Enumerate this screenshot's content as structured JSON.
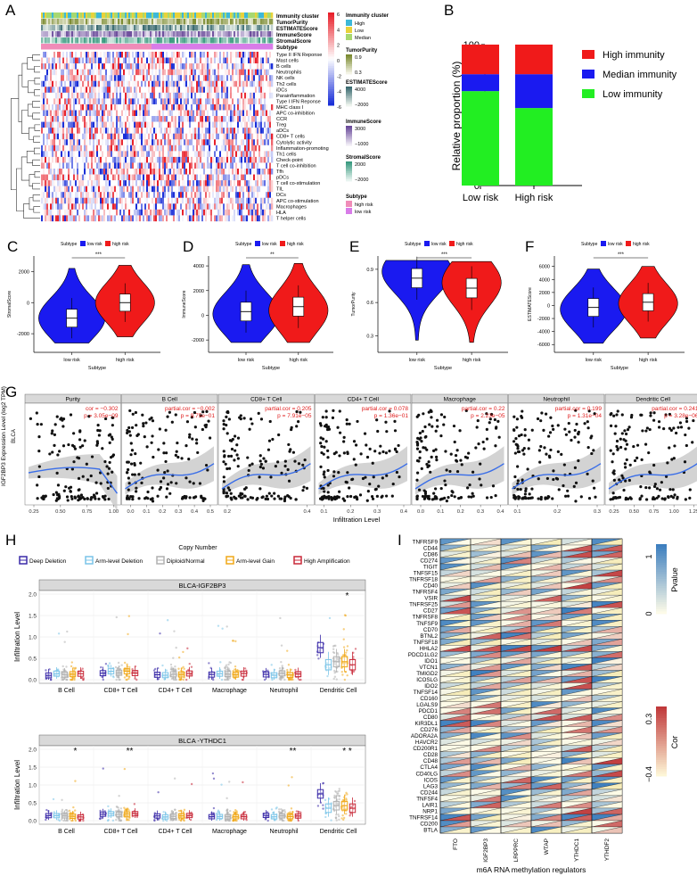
{
  "panels": {
    "A": "A",
    "B": "B",
    "C": "C",
    "D": "D",
    "E": "E",
    "F": "F",
    "G": "G",
    "H": "H",
    "I": "I"
  },
  "heatmap": {
    "annotation_rows": [
      "Immunity cluster",
      "TumorPurity",
      "ESTIMATEScore",
      "ImmuneScore",
      "StromalScore",
      "Subtype"
    ],
    "gene_rows": [
      "Type II IFN Reponse",
      "Mast cells",
      "B cells",
      "Neutrophils",
      "NK cells",
      "Th2 cells",
      "iDCs",
      "Parainflammation",
      "Type I IFN Reponse",
      "MHC class I",
      "APC co-inhibition",
      "CCR",
      "Treg",
      "aDCs",
      "CD8+ T cells",
      "Cytolytic activity",
      "Inflammation-promoting",
      "Th1 cells",
      "Check-point",
      "T cell co-inhibition",
      "Tfh",
      "pDCs",
      "T cell co-stimulation",
      "TIL",
      "DCs",
      "APC co-stimulation",
      "Macrophages",
      "HLA",
      "T helper cells"
    ],
    "scale_ticks": [
      "6",
      "4",
      "2",
      "0",
      "-2",
      "-4",
      "-6"
    ],
    "legend": {
      "immunity_title": "Immunity cluster",
      "immunity_items": [
        "High",
        "Low",
        "Median"
      ],
      "tp_title": "TumorPurity",
      "tp_ticks": [
        "0.9",
        "0.3"
      ],
      "est_title": "ESTIMATEScore",
      "est_ticks": [
        "4000",
        "−2000"
      ],
      "imm_title": "ImmuneScore",
      "imm_ticks": [
        "3000",
        "−1000"
      ],
      "str_title": "StromalScore",
      "str_ticks": [
        "2000",
        "−2000"
      ],
      "sub_title": "Subtype",
      "sub_items": [
        "high risk",
        "low risk"
      ]
    },
    "colors": {
      "high": "#e8202a",
      "low": "#1a2fd8",
      "mid": "#ffffff",
      "imm_high": "#3db8d8",
      "imm_low": "#e8d23a",
      "imm_med": "#a8d870",
      "subtype_high": "#f08cb8",
      "subtype_low": "#d87ce8"
    }
  },
  "chart_data": [
    {
      "panel": "B",
      "type": "bar",
      "categories": [
        "Low risk",
        "High risk"
      ],
      "ylabel": "Relative proportion (%)",
      "yticks": [
        "0",
        "50",
        "100"
      ],
      "ylim": [
        0,
        100
      ],
      "series": [
        {
          "name": "Low immunity",
          "color": "#22ee22",
          "values": [
            67,
            55
          ]
        },
        {
          "name": "Median immunity",
          "color": "#1a1af0",
          "values": [
            12,
            24
          ]
        },
        {
          "name": "High immunity",
          "color": "#f01a1a",
          "values": [
            21,
            21
          ]
        }
      ],
      "legend_order": [
        "High immunity",
        "Median immunity",
        "Low immunity"
      ]
    },
    {
      "panel": "C",
      "type": "violin",
      "legend_title": "Subtype",
      "categories": [
        "low risk",
        "high risk"
      ],
      "xlabel": "Subtype",
      "ylabel": "StromalScore",
      "yticks": [
        "2000",
        "0",
        "-2000"
      ],
      "signif": "***",
      "medians": [
        -1000,
        0
      ]
    },
    {
      "panel": "D",
      "type": "violin",
      "legend_title": "Subtype",
      "categories": [
        "low risk",
        "high risk"
      ],
      "xlabel": "Subtype",
      "ylabel": "ImmuneScore",
      "yticks": [
        "4000",
        "2000",
        "0",
        "-2000"
      ],
      "signif": "**",
      "medians": [
        300,
        700
      ]
    },
    {
      "panel": "E",
      "type": "violin",
      "legend_title": "Subtype",
      "categories": [
        "low risk",
        "high risk"
      ],
      "xlabel": "Subtype",
      "ylabel": "TumorPurity",
      "yticks": [
        "0.9",
        "0.6",
        "0.3"
      ],
      "signif": "***",
      "medians": [
        0.82,
        0.73
      ]
    },
    {
      "panel": "F",
      "type": "violin",
      "legend_title": "Subtype",
      "categories": [
        "low risk",
        "high risk"
      ],
      "xlabel": "Subtype",
      "ylabel": "ESTIMATEScore",
      "yticks": [
        "6000",
        "4000",
        "2000",
        "0",
        "-2000",
        "-4000",
        "-6000"
      ],
      "signif": "***",
      "medians": [
        -300,
        500
      ]
    },
    {
      "panel": "G",
      "type": "scatter",
      "ylabel": "IGF2BP3 Expression Level (log2 TPM)",
      "row_label": "BLCA",
      "xlabel": "Infiltration Level",
      "facets": [
        {
          "title": "Purity",
          "stat": "cor = −0.302",
          "p": "p = 3.05e−09",
          "xticks": [
            "0.25",
            "0.50",
            "0.75",
            "1.00"
          ]
        },
        {
          "title": "B Cell",
          "stat": "partial.cor = −0.002",
          "p": "p = 9.75e−01",
          "xticks": [
            "0.0",
            "0.1",
            "0.2",
            "0.3",
            "0.4",
            "0.5"
          ]
        },
        {
          "title": "CD8+ T Cell",
          "stat": "partial.cor = 0.205",
          "p": "p = 7.91e−05",
          "xticks": [
            "0.2",
            "0.4"
          ]
        },
        {
          "title": "CD4+ T Cell",
          "stat": "partial.cor = 0.078",
          "p": "p = 1.36e−01",
          "xticks": [
            "0.1",
            "0.2",
            "0.3",
            "0.4"
          ]
        },
        {
          "title": "Macrophage",
          "stat": "partial.cor = 0.22",
          "p": "p = 2.23e−05",
          "xticks": [
            "0.0",
            "0.1",
            "0.2",
            "0.3",
            "0.4"
          ]
        },
        {
          "title": "Neutrophil",
          "stat": "partial.cor = 0.199",
          "p": "p = 1.31e−04",
          "xticks": [
            "0.1",
            "0.2",
            "0.3"
          ]
        },
        {
          "title": "Dendritic Cell",
          "stat": "partial.cor = 0.241",
          "p": "p = 3.28e−06",
          "xticks": [
            "0.25",
            "0.50",
            "0.75",
            "1.00",
            "1.25"
          ]
        }
      ]
    },
    {
      "panel": "H",
      "type": "box",
      "legend_title": "Copy Number",
      "legend_items": [
        {
          "name": "Deep Deletion",
          "color": "#3a2aa8"
        },
        {
          "name": "Arm-level Deletion",
          "color": "#7ac4e8"
        },
        {
          "name": "Diploid/Normal",
          "color": "#b0b0b0"
        },
        {
          "name": "Arm-level Gain",
          "color": "#f0a818"
        },
        {
          "name": "High Amplification",
          "color": "#c82838"
        }
      ],
      "ylabel": "Infiltration Level",
      "categories": [
        "B Cell",
        "CD8+ T Cell",
        "CD4+ T Cell",
        "Macrophage",
        "Neutrophil",
        "Dendritic Cell"
      ],
      "facets": [
        {
          "title": "BLCA-IGF2BP3",
          "yticks": [
            "2.0",
            "1.5",
            "1.0",
            "0.5",
            "0.0"
          ],
          "stars": [
            {
              "cat": 5,
              "text": "*"
            }
          ]
        },
        {
          "title": "BLCA -YTHDC1",
          "yticks": [
            "2.0",
            "1.5",
            "1.0",
            "0.5",
            "0.0"
          ],
          "stars": [
            {
              "cat": 0,
              "text": "*"
            },
            {
              "cat": 1,
              "text": "**"
            },
            {
              "cat": 4,
              "text": "**"
            },
            {
              "cat": 5,
              "text": "*  *"
            }
          ]
        }
      ]
    },
    {
      "panel": "I",
      "type": "heatmap",
      "xlabel": "m6A RNA methylation regulators",
      "columns": [
        "FTO",
        "IGF2BP3",
        "LRPPRC",
        "WTAP",
        "YTHDC1",
        "YTHDF2"
      ],
      "rows": [
        "TNFRSF9",
        "CD44",
        "CD86",
        "CD274",
        "TIGIT",
        "TNFSF15",
        "TNFRSF18",
        "CD40",
        "TNFRSF4",
        "VSIR",
        "TNFRSF25",
        "CD27",
        "TNFRSF8",
        "TNFSF9",
        "CD70",
        "BTNL2",
        "TNFSF18",
        "HHLA2",
        "PDCD1LG2",
        "IDO1",
        "VTCN1",
        "TMIGD2",
        "ICOSLG",
        "IDO2",
        "TNFSF14",
        "CD160",
        "LGALS9",
        "PDCD1",
        "CD80",
        "KIR3DL1",
        "CD276",
        "ADORA2A",
        "HAVCR2",
        "CD200R1",
        "CD28",
        "CD48",
        "CTLA4",
        "CD40LG",
        "ICOS",
        "LAG3",
        "CD244",
        "TNFSF4",
        "LAIR1",
        "NRP1",
        "TNFRSF14",
        "CD200",
        "BTLA"
      ],
      "pvalue_legend": {
        "title": "Pvalue",
        "ticks": [
          "1",
          "0"
        ]
      },
      "cor_legend": {
        "title": "Cor",
        "ticks": [
          "0.3",
          "−0.4"
        ]
      }
    }
  ]
}
